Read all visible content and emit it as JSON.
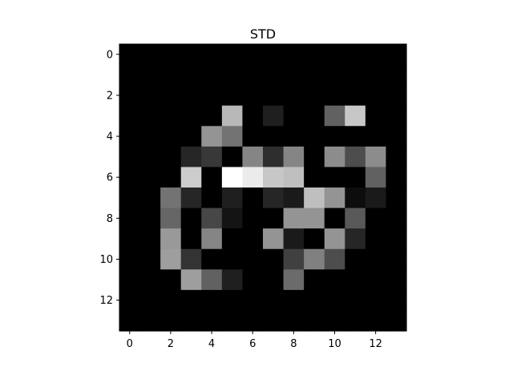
{
  "chart_data": {
    "type": "heatmap",
    "title": "STD",
    "xlabel": "",
    "ylabel": "",
    "colormap": "gray",
    "rows": 14,
    "cols": 14,
    "x_ticks": [
      0,
      2,
      4,
      6,
      8,
      10,
      12
    ],
    "y_ticks": [
      0,
      2,
      4,
      6,
      8,
      10,
      12
    ],
    "value_range": [
      0,
      1
    ],
    "values": [
      [
        0,
        0,
        0,
        0,
        0,
        0,
        0,
        0,
        0,
        0,
        0,
        0,
        0,
        0
      ],
      [
        0,
        0,
        0,
        0,
        0,
        0,
        0,
        0,
        0,
        0,
        0,
        0,
        0,
        0
      ],
      [
        0,
        0,
        0,
        0,
        0,
        0,
        0,
        0,
        0,
        0,
        0,
        0,
        0,
        0
      ],
      [
        0,
        0,
        0,
        0,
        0,
        0.72,
        0,
        0.12,
        0,
        0,
        0.38,
        0.78,
        0,
        0
      ],
      [
        0,
        0,
        0,
        0,
        0.58,
        0.45,
        0,
        0,
        0,
        0,
        0,
        0,
        0,
        0
      ],
      [
        0,
        0,
        0,
        0.15,
        0.22,
        0,
        0.52,
        0.18,
        0.52,
        0,
        0.55,
        0.3,
        0.55,
        0
      ],
      [
        0,
        0,
        0,
        0.8,
        0,
        1.0,
        0.92,
        0.78,
        0.75,
        0,
        0,
        0,
        0.38,
        0
      ],
      [
        0,
        0,
        0.45,
        0.15,
        0,
        0.12,
        0,
        0.15,
        0.1,
        0.75,
        0.58,
        0.05,
        0.1,
        0
      ],
      [
        0,
        0,
        0.4,
        0,
        0.28,
        0.08,
        0,
        0,
        0.58,
        0.58,
        0,
        0.35,
        0,
        0
      ],
      [
        0,
        0,
        0.6,
        0,
        0.52,
        0,
        0,
        0.58,
        0.1,
        0,
        0.58,
        0.15,
        0,
        0
      ],
      [
        0,
        0,
        0.62,
        0.2,
        0,
        0,
        0,
        0,
        0.25,
        0.5,
        0.3,
        0,
        0,
        0
      ],
      [
        0,
        0,
        0,
        0.62,
        0.38,
        0.12,
        0,
        0,
        0.42,
        0,
        0,
        0,
        0,
        0
      ],
      [
        0,
        0,
        0,
        0,
        0,
        0,
        0,
        0,
        0,
        0,
        0,
        0,
        0,
        0
      ],
      [
        0,
        0,
        0,
        0,
        0,
        0,
        0,
        0,
        0,
        0,
        0,
        0,
        0,
        0
      ]
    ]
  }
}
